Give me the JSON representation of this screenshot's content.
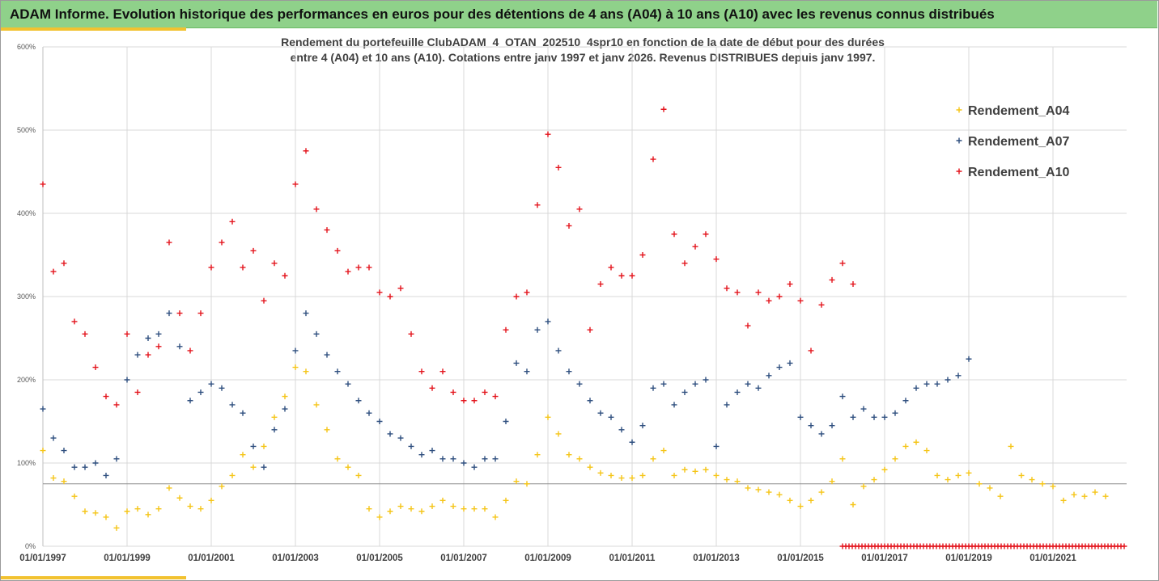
{
  "window": {
    "title": "ADAM Informe. Evolution historique des performances en euros pour des détentions de 4 ans (A04) à 10 ans (A10) avec les revenus connus distribués"
  },
  "colors": {
    "banner": "#8fd18a",
    "accent_gold": "#f2c230",
    "A04": "#f5c518",
    "A07": "#2f4f7f",
    "A10": "#e3141c",
    "grid": "#d9d9d9",
    "axis_text": "#595959"
  },
  "chart_data": {
    "type": "scatter",
    "marker": "plus",
    "title_line1": "Rendement du portefeuille ClubADAM_4_OTAN_202510_4spr10  en fonction de la date de début pour des durées",
    "title_line2": "entre 4 (A04) et 10 ans (A10). Cotations entre janv 1997 et janv 2026. Revenus DISTRIBUES depuis janv 1997.",
    "xlabel": "",
    "ylabel": "",
    "x_range": [
      "1997-01-01",
      "2022-10-01"
    ],
    "ylim": [
      0,
      6
    ],
    "y_format": "percent",
    "y_ticks": [
      "0%",
      "100%",
      "200%",
      "300%",
      "400%",
      "500%",
      "600%"
    ],
    "x_ticks": [
      "01/01/1997",
      "01/01/1999",
      "01/01/2001",
      "01/01/2003",
      "01/01/2005",
      "01/01/2007",
      "01/01/2009",
      "01/01/2011",
      "01/01/2013",
      "01/01/2015",
      "01/01/2017",
      "01/01/2019",
      "01/01/2021"
    ],
    "grid": true,
    "reference_line": 0.75,
    "legend_position": "right",
    "series": [
      {
        "name": "Rendement_A04",
        "color": "#f5c518",
        "points": [
          [
            "1997-01",
            1.15
          ],
          [
            "1997-04",
            0.82
          ],
          [
            "1997-07",
            0.78
          ],
          [
            "1997-10",
            0.6
          ],
          [
            "1998-01",
            0.42
          ],
          [
            "1998-04",
            0.4
          ],
          [
            "1998-07",
            0.35
          ],
          [
            "1998-10",
            0.22
          ],
          [
            "1999-01",
            0.42
          ],
          [
            "1999-04",
            0.45
          ],
          [
            "1999-07",
            0.38
          ],
          [
            "1999-10",
            0.45
          ],
          [
            "2000-01",
            0.7
          ],
          [
            "2000-04",
            0.58
          ],
          [
            "2000-07",
            0.48
          ],
          [
            "2000-10",
            0.45
          ],
          [
            "2001-01",
            0.55
          ],
          [
            "2001-04",
            0.72
          ],
          [
            "2001-07",
            0.85
          ],
          [
            "2001-10",
            1.1
          ],
          [
            "2002-01",
            0.95
          ],
          [
            "2002-04",
            1.2
          ],
          [
            "2002-07",
            1.55
          ],
          [
            "2002-10",
            1.8
          ],
          [
            "2003-01",
            2.15
          ],
          [
            "2003-04",
            2.1
          ],
          [
            "2003-07",
            1.7
          ],
          [
            "2003-10",
            1.4
          ],
          [
            "2004-01",
            1.05
          ],
          [
            "2004-04",
            0.95
          ],
          [
            "2004-07",
            0.85
          ],
          [
            "2004-10",
            0.45
          ],
          [
            "2005-01",
            0.35
          ],
          [
            "2005-04",
            0.42
          ],
          [
            "2005-07",
            0.48
          ],
          [
            "2005-10",
            0.45
          ],
          [
            "2006-01",
            0.42
          ],
          [
            "2006-04",
            0.48
          ],
          [
            "2006-07",
            0.55
          ],
          [
            "2006-10",
            0.48
          ],
          [
            "2007-01",
            0.45
          ],
          [
            "2007-04",
            0.45
          ],
          [
            "2007-07",
            0.45
          ],
          [
            "2007-10",
            0.35
          ],
          [
            "2008-01",
            0.55
          ],
          [
            "2008-04",
            0.78
          ],
          [
            "2008-07",
            0.75
          ],
          [
            "2008-10",
            1.1
          ],
          [
            "2009-01",
            1.55
          ],
          [
            "2009-04",
            1.35
          ],
          [
            "2009-07",
            1.1
          ],
          [
            "2009-10",
            1.05
          ],
          [
            "2010-01",
            0.95
          ],
          [
            "2010-04",
            0.88
          ],
          [
            "2010-07",
            0.85
          ],
          [
            "2010-10",
            0.82
          ],
          [
            "2011-01",
            0.82
          ],
          [
            "2011-04",
            0.85
          ],
          [
            "2011-07",
            1.05
          ],
          [
            "2011-10",
            1.15
          ],
          [
            "2012-01",
            0.85
          ],
          [
            "2012-04",
            0.92
          ],
          [
            "2012-07",
            0.9
          ],
          [
            "2012-10",
            0.92
          ],
          [
            "2013-01",
            0.85
          ],
          [
            "2013-04",
            0.8
          ],
          [
            "2013-07",
            0.78
          ],
          [
            "2013-10",
            0.7
          ],
          [
            "2014-01",
            0.68
          ],
          [
            "2014-04",
            0.65
          ],
          [
            "2014-07",
            0.62
          ],
          [
            "2014-10",
            0.55
          ],
          [
            "2015-01",
            0.48
          ],
          [
            "2015-04",
            0.55
          ],
          [
            "2015-07",
            0.65
          ],
          [
            "2015-10",
            0.78
          ],
          [
            "2016-01",
            1.05
          ],
          [
            "2016-04",
            0.5
          ],
          [
            "2016-07",
            0.72
          ],
          [
            "2016-10",
            0.8
          ],
          [
            "2017-01",
            0.92
          ],
          [
            "2017-04",
            1.05
          ],
          [
            "2017-07",
            1.2
          ],
          [
            "2017-10",
            1.25
          ],
          [
            "2018-01",
            1.15
          ],
          [
            "2018-04",
            0.85
          ],
          [
            "2018-07",
            0.8
          ],
          [
            "2018-10",
            0.85
          ],
          [
            "2019-01",
            0.88
          ],
          [
            "2019-04",
            0.75
          ],
          [
            "2019-07",
            0.7
          ],
          [
            "2019-10",
            0.6
          ],
          [
            "2020-01",
            1.2
          ],
          [
            "2020-04",
            0.85
          ],
          [
            "2020-07",
            0.8
          ],
          [
            "2020-10",
            0.75
          ],
          [
            "2021-01",
            0.72
          ],
          [
            "2021-04",
            0.55
          ],
          [
            "2021-07",
            0.62
          ],
          [
            "2021-10",
            0.6
          ],
          [
            "2022-01",
            0.65
          ],
          [
            "2022-04",
            0.6
          ]
        ]
      },
      {
        "name": "Rendement_A07",
        "color": "#2f4f7f",
        "points": [
          [
            "1997-01",
            1.65
          ],
          [
            "1997-04",
            1.3
          ],
          [
            "1997-07",
            1.15
          ],
          [
            "1997-10",
            0.95
          ],
          [
            "1998-01",
            0.95
          ],
          [
            "1998-04",
            1.0
          ],
          [
            "1998-07",
            0.85
          ],
          [
            "1998-10",
            1.05
          ],
          [
            "1999-01",
            2.0
          ],
          [
            "1999-04",
            2.3
          ],
          [
            "1999-07",
            2.5
          ],
          [
            "1999-10",
            2.55
          ],
          [
            "2000-01",
            2.8
          ],
          [
            "2000-04",
            2.4
          ],
          [
            "2000-07",
            1.75
          ],
          [
            "2000-10",
            1.85
          ],
          [
            "2001-01",
            1.95
          ],
          [
            "2001-04",
            1.9
          ],
          [
            "2001-07",
            1.7
          ],
          [
            "2001-10",
            1.6
          ],
          [
            "2002-01",
            1.2
          ],
          [
            "2002-04",
            0.95
          ],
          [
            "2002-07",
            1.4
          ],
          [
            "2002-10",
            1.65
          ],
          [
            "2003-01",
            2.35
          ],
          [
            "2003-04",
            2.8
          ],
          [
            "2003-07",
            2.55
          ],
          [
            "2003-10",
            2.3
          ],
          [
            "2004-01",
            2.1
          ],
          [
            "2004-04",
            1.95
          ],
          [
            "2004-07",
            1.75
          ],
          [
            "2004-10",
            1.6
          ],
          [
            "2005-01",
            1.5
          ],
          [
            "2005-04",
            1.35
          ],
          [
            "2005-07",
            1.3
          ],
          [
            "2005-10",
            1.2
          ],
          [
            "2006-01",
            1.1
          ],
          [
            "2006-04",
            1.15
          ],
          [
            "2006-07",
            1.05
          ],
          [
            "2006-10",
            1.05
          ],
          [
            "2007-01",
            1.0
          ],
          [
            "2007-04",
            0.95
          ],
          [
            "2007-07",
            1.05
          ],
          [
            "2007-10",
            1.05
          ],
          [
            "2008-01",
            1.5
          ],
          [
            "2008-04",
            2.2
          ],
          [
            "2008-07",
            2.1
          ],
          [
            "2008-10",
            2.6
          ],
          [
            "2009-01",
            2.7
          ],
          [
            "2009-04",
            2.35
          ],
          [
            "2009-07",
            2.1
          ],
          [
            "2009-10",
            1.95
          ],
          [
            "2010-01",
            1.75
          ],
          [
            "2010-04",
            1.6
          ],
          [
            "2010-07",
            1.55
          ],
          [
            "2010-10",
            1.4
          ],
          [
            "2011-01",
            1.25
          ],
          [
            "2011-04",
            1.45
          ],
          [
            "2011-07",
            1.9
          ],
          [
            "2011-10",
            1.95
          ],
          [
            "2012-01",
            1.7
          ],
          [
            "2012-04",
            1.85
          ],
          [
            "2012-07",
            1.95
          ],
          [
            "2012-10",
            2.0
          ],
          [
            "2013-01",
            1.2
          ],
          [
            "2013-04",
            1.7
          ],
          [
            "2013-07",
            1.85
          ],
          [
            "2013-10",
            1.95
          ],
          [
            "2014-01",
            1.9
          ],
          [
            "2014-04",
            2.05
          ],
          [
            "2014-07",
            2.15
          ],
          [
            "2014-10",
            2.2
          ],
          [
            "2015-01",
            1.55
          ],
          [
            "2015-04",
            1.45
          ],
          [
            "2015-07",
            1.35
          ],
          [
            "2015-10",
            1.45
          ],
          [
            "2016-01",
            1.8
          ],
          [
            "2016-04",
            1.55
          ],
          [
            "2016-07",
            1.65
          ],
          [
            "2016-10",
            1.55
          ],
          [
            "2017-01",
            1.55
          ],
          [
            "2017-04",
            1.6
          ],
          [
            "2017-07",
            1.75
          ],
          [
            "2017-10",
            1.9
          ],
          [
            "2018-01",
            1.95
          ],
          [
            "2018-04",
            1.95
          ],
          [
            "2018-07",
            2.0
          ],
          [
            "2018-10",
            2.05
          ],
          [
            "2019-01",
            2.25
          ]
        ]
      },
      {
        "name": "Rendement_A10",
        "color": "#e3141c",
        "points": [
          [
            "1997-01",
            4.35
          ],
          [
            "1997-04",
            3.3
          ],
          [
            "1997-07",
            3.4
          ],
          [
            "1997-10",
            2.7
          ],
          [
            "1998-01",
            2.55
          ],
          [
            "1998-04",
            2.15
          ],
          [
            "1998-07",
            1.8
          ],
          [
            "1998-10",
            1.7
          ],
          [
            "1999-01",
            2.55
          ],
          [
            "1999-04",
            1.85
          ],
          [
            "1999-07",
            2.3
          ],
          [
            "1999-10",
            2.4
          ],
          [
            "2000-01",
            3.65
          ],
          [
            "2000-04",
            2.8
          ],
          [
            "2000-07",
            2.35
          ],
          [
            "2000-10",
            2.8
          ],
          [
            "2001-01",
            3.35
          ],
          [
            "2001-04",
            3.65
          ],
          [
            "2001-07",
            3.9
          ],
          [
            "2001-10",
            3.35
          ],
          [
            "2002-01",
            3.55
          ],
          [
            "2002-04",
            2.95
          ],
          [
            "2002-07",
            3.4
          ],
          [
            "2002-10",
            3.25
          ],
          [
            "2003-01",
            4.35
          ],
          [
            "2003-04",
            4.75
          ],
          [
            "2003-07",
            4.05
          ],
          [
            "2003-10",
            3.8
          ],
          [
            "2004-01",
            3.55
          ],
          [
            "2004-04",
            3.3
          ],
          [
            "2004-07",
            3.35
          ],
          [
            "2004-10",
            3.35
          ],
          [
            "2005-01",
            3.05
          ],
          [
            "2005-04",
            3.0
          ],
          [
            "2005-07",
            3.1
          ],
          [
            "2005-10",
            2.55
          ],
          [
            "2006-01",
            2.1
          ],
          [
            "2006-04",
            1.9
          ],
          [
            "2006-07",
            2.1
          ],
          [
            "2006-10",
            1.85
          ],
          [
            "2007-01",
            1.75
          ],
          [
            "2007-04",
            1.75
          ],
          [
            "2007-07",
            1.85
          ],
          [
            "2007-10",
            1.8
          ],
          [
            "2008-01",
            2.6
          ],
          [
            "2008-04",
            3.0
          ],
          [
            "2008-07",
            3.05
          ],
          [
            "2008-10",
            4.1
          ],
          [
            "2009-01",
            4.95
          ],
          [
            "2009-04",
            4.55
          ],
          [
            "2009-07",
            3.85
          ],
          [
            "2009-10",
            4.05
          ],
          [
            "2010-01",
            2.6
          ],
          [
            "2010-04",
            3.15
          ],
          [
            "2010-07",
            3.35
          ],
          [
            "2010-10",
            3.25
          ],
          [
            "2011-01",
            3.25
          ],
          [
            "2011-04",
            3.5
          ],
          [
            "2011-07",
            4.65
          ],
          [
            "2011-10",
            5.25
          ],
          [
            "2012-01",
            3.75
          ],
          [
            "2012-04",
            3.4
          ],
          [
            "2012-07",
            3.6
          ],
          [
            "2012-10",
            3.75
          ],
          [
            "2013-01",
            3.45
          ],
          [
            "2013-04",
            3.1
          ],
          [
            "2013-07",
            3.05
          ],
          [
            "2013-10",
            2.65
          ],
          [
            "2014-01",
            3.05
          ],
          [
            "2014-04",
            2.95
          ],
          [
            "2014-07",
            3.0
          ],
          [
            "2014-10",
            3.15
          ],
          [
            "2015-01",
            2.95
          ],
          [
            "2015-04",
            2.35
          ],
          [
            "2015-07",
            2.9
          ],
          [
            "2015-10",
            3.2
          ],
          [
            "2016-01",
            3.4
          ],
          [
            "2016-04",
            3.15
          ]
        ]
      }
    ],
    "zero_band": {
      "series": "Rendement_A10",
      "from": "2016-01",
      "to": "2022-10",
      "value": 0
    }
  }
}
